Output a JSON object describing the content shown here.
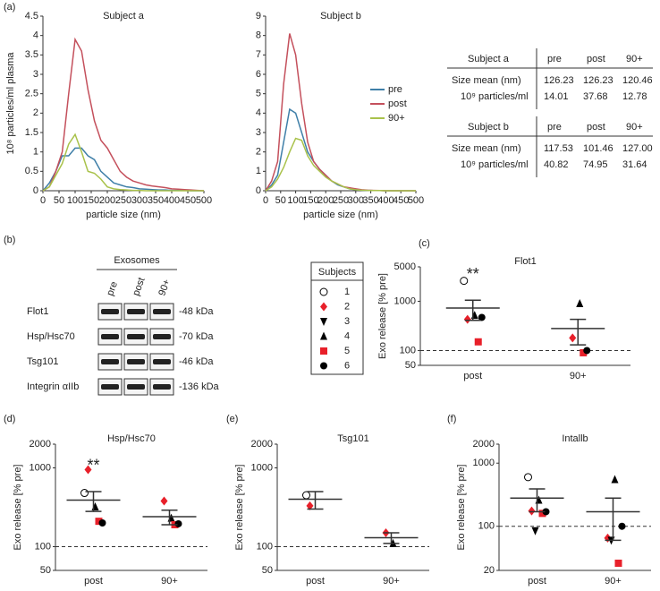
{
  "panel_labels": [
    "(a)",
    "(b)",
    "(c)",
    "(d)",
    "(e)",
    "(f)"
  ],
  "chart_data": [
    {
      "type": "line",
      "title": "Subject a",
      "xlabel": "particle size (nm)",
      "ylabel": "10⁸ particles/ml plasma",
      "x": [
        0,
        20,
        40,
        60,
        80,
        100,
        120,
        140,
        160,
        180,
        200,
        220,
        240,
        260,
        280,
        300,
        320,
        340,
        360,
        380,
        400,
        420,
        440,
        460,
        480,
        500
      ],
      "xlim": [
        0,
        500
      ],
      "xticks": [
        0,
        50,
        100,
        150,
        200,
        250,
        300,
        350,
        400,
        450,
        500
      ],
      "ylim": [
        0,
        4.5
      ],
      "yticks": [
        0,
        0.5,
        1,
        1.5,
        2,
        2.5,
        3,
        3.5,
        4,
        4.5
      ],
      "legend": true,
      "series": [
        {
          "name": "pre",
          "color": "#3f7fa8",
          "values": [
            0,
            0.2,
            0.5,
            0.9,
            0.9,
            1.1,
            1.1,
            0.9,
            0.8,
            0.5,
            0.35,
            0.2,
            0.15,
            0.1,
            0.08,
            0.05,
            0.04,
            0.03,
            0.02,
            0.02,
            0.01,
            0.01,
            0.01,
            0,
            0,
            0
          ]
        },
        {
          "name": "post",
          "color": "#c4505c",
          "values": [
            0,
            0.1,
            0.5,
            1.0,
            2.5,
            3.9,
            3.6,
            2.6,
            1.8,
            1.3,
            1.1,
            0.8,
            0.5,
            0.35,
            0.25,
            0.2,
            0.15,
            0.12,
            0.1,
            0.08,
            0.05,
            0.04,
            0.03,
            0.02,
            0.01,
            0
          ]
        },
        {
          "name": "90+",
          "color": "#a9c24b",
          "values": [
            0,
            0.1,
            0.4,
            0.7,
            1.2,
            1.45,
            1.0,
            0.5,
            0.45,
            0.3,
            0.1,
            0.05,
            0.03,
            0.02,
            0.01,
            0.01,
            0,
            0,
            0,
            0,
            0,
            0,
            0,
            0,
            0,
            0
          ]
        }
      ]
    },
    {
      "type": "line",
      "title": "Subject b",
      "xlabel": "particle size (nm)",
      "x": [
        0,
        20,
        40,
        60,
        80,
        100,
        120,
        140,
        160,
        180,
        200,
        220,
        240,
        260,
        280,
        300,
        320,
        340,
        360,
        380,
        400,
        420,
        440,
        460,
        480,
        500
      ],
      "xlim": [
        0,
        500
      ],
      "xticks": [
        0,
        50,
        100,
        150,
        200,
        250,
        300,
        350,
        400,
        450,
        500
      ],
      "ylim": [
        0,
        9
      ],
      "yticks": [
        0,
        1,
        2,
        3,
        4,
        5,
        6,
        7,
        8,
        9
      ],
      "series": [
        {
          "color": "#3f7fa8",
          "values": [
            0,
            0.3,
            0.8,
            2.5,
            4.2,
            4.0,
            3.0,
            2.0,
            1.5,
            1.1,
            0.8,
            0.5,
            0.3,
            0.2,
            0.1,
            0.05,
            0.03,
            0.02,
            0.01,
            0.01,
            0,
            0,
            0,
            0,
            0,
            0
          ]
        },
        {
          "color": "#c4505c",
          "values": [
            0,
            0.5,
            1.5,
            5.5,
            8.1,
            7.0,
            4.5,
            2.5,
            1.5,
            1.1,
            0.8,
            0.5,
            0.35,
            0.2,
            0.15,
            0.1,
            0.05,
            0.03,
            0.02,
            0.01,
            0,
            0,
            0,
            0,
            0,
            0
          ]
        },
        {
          "color": "#a9c24b",
          "values": [
            0,
            0.2,
            0.6,
            1.2,
            2.0,
            2.7,
            2.6,
            1.8,
            1.3,
            1.0,
            0.7,
            0.5,
            0.35,
            0.2,
            0.1,
            0.05,
            0.03,
            0.02,
            0.01,
            0.01,
            0,
            0,
            0,
            0,
            0,
            0
          ]
        }
      ]
    },
    {
      "type": "dot",
      "title": "Flot1",
      "ylabel": "Exo release [% pre]",
      "categories": [
        "post",
        "90+"
      ],
      "log": true,
      "ylim": [
        50,
        5000
      ],
      "yticks": [
        50,
        100,
        1000,
        5000
      ],
      "refline": 100,
      "series": [
        {
          "values": [
            2600,
            null
          ]
        },
        {
          "values": [
            430,
            180
          ]
        },
        {
          "values": [
            null,
            null
          ]
        },
        {
          "values": [
            520,
            900
          ]
        },
        {
          "values": [
            150,
            90
          ]
        },
        {
          "values": [
            470,
            100
          ]
        }
      ],
      "mean": [
        730,
        280
      ],
      "error": [
        320,
        150
      ],
      "significance": [
        "**",
        null
      ]
    },
    {
      "type": "dot",
      "title": "Hsp/Hsc70",
      "ylabel": "Exo release [% pre]",
      "categories": [
        "post",
        "90+"
      ],
      "log": true,
      "ylim": [
        50,
        2000
      ],
      "yticks": [
        50,
        100,
        1000,
        2000
      ],
      "refline": 100,
      "series": [
        {
          "values": [
            480,
            null
          ]
        },
        {
          "values": [
            950,
            380
          ]
        },
        {
          "values": [
            null,
            null
          ]
        },
        {
          "values": [
            320,
            230
          ]
        },
        {
          "values": [
            210,
            190
          ]
        },
        {
          "values": [
            200,
            195
          ]
        }
      ],
      "mean": [
        390,
        240
      ],
      "error": [
        110,
        50
      ],
      "significance": [
        "**",
        null
      ]
    },
    {
      "type": "dot",
      "title": "Tsg101",
      "ylabel": "Exo release [% pre]",
      "categories": [
        "post",
        "90+"
      ],
      "log": true,
      "ylim": [
        50,
        2000
      ],
      "yticks": [
        50,
        100,
        1000,
        2000
      ],
      "refline": 100,
      "series": [
        {
          "values": [
            450,
            null
          ]
        },
        {
          "values": [
            330,
            150
          ]
        },
        {
          "values": [
            null,
            null
          ]
        },
        {
          "values": [
            null,
            110
          ]
        },
        {
          "values": [
            null,
            null
          ]
        },
        {
          "values": [
            null,
            null
          ]
        }
      ],
      "mean": [
        400,
        130
      ],
      "error": [
        100,
        20
      ]
    },
    {
      "type": "dot",
      "title": "Intallb",
      "ylabel": "Exo release [% pre]",
      "categories": [
        "post",
        "90+"
      ],
      "log": true,
      "ylim": [
        20,
        2000
      ],
      "yticks": [
        20,
        100,
        1000,
        2000
      ],
      "refline": 100,
      "series": [
        {
          "values": [
            600,
            null
          ]
        },
        {
          "values": [
            175,
            65
          ]
        },
        {
          "values": [
            85,
            60
          ]
        },
        {
          "values": [
            260,
            550
          ]
        },
        {
          "values": [
            160,
            26
          ]
        },
        {
          "values": [
            170,
            100
          ]
        }
      ],
      "mean": [
        280,
        170
      ],
      "error": [
        110,
        110
      ]
    }
  ],
  "tables": [
    {
      "header": [
        "Subject a",
        "pre",
        "post",
        "90+"
      ],
      "rows": [
        [
          "Size mean (nm)",
          "126.23",
          "126.23",
          "120.46"
        ],
        [
          "10⁹ particles/ml",
          "14.01",
          "37.68",
          "12.78"
        ]
      ]
    },
    {
      "header": [
        "Subject b",
        "pre",
        "post",
        "90+"
      ],
      "rows": [
        [
          "Size mean (nm)",
          "117.53",
          "101.46",
          "127.00"
        ],
        [
          "10⁹ particles/ml",
          "40.82",
          "74.95",
          "31.64"
        ]
      ]
    }
  ],
  "blot": {
    "title": "Exosomes",
    "lanes": [
      "pre",
      "post",
      "90+"
    ],
    "rows": [
      {
        "label": "Flot1",
        "size": "-48 kDa"
      },
      {
        "label": "Hsp/Hsc70",
        "size": "-70 kDa"
      },
      {
        "label": "Tsg101",
        "size": "-46 kDa"
      },
      {
        "label": "Integrin αIIb",
        "size": "-136 kDa"
      }
    ]
  },
  "subjects": {
    "title": "Subjects",
    "items": [
      {
        "label": "1",
        "marker": "circle-open",
        "color": "#000000"
      },
      {
        "label": "2",
        "marker": "diamond",
        "color": "#e8202a"
      },
      {
        "label": "3",
        "marker": "triangle-down",
        "color": "#000000"
      },
      {
        "label": "4",
        "marker": "triangle",
        "color": "#000000"
      },
      {
        "label": "5",
        "marker": "square",
        "color": "#e8202a"
      },
      {
        "label": "6",
        "marker": "circle",
        "color": "#000000"
      }
    ]
  }
}
